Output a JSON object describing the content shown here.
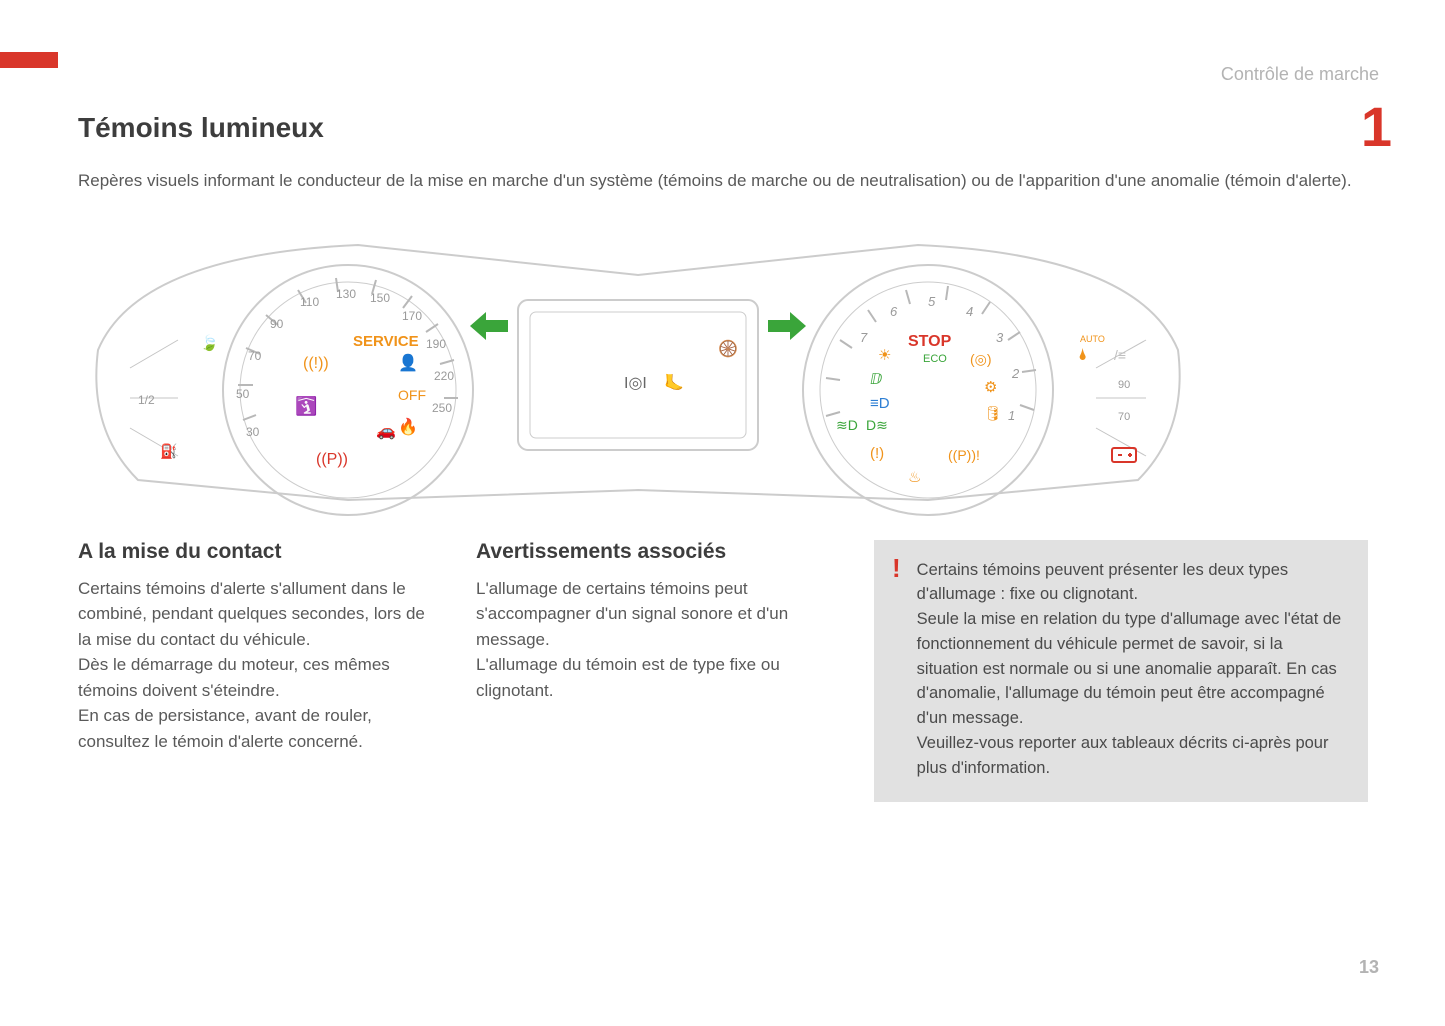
{
  "header": {
    "section_label": "Contrôle de marche",
    "chapter_number": "1",
    "page_number": "13",
    "accent_color": "#d9362a",
    "muted_text_color": "#b3b3b3"
  },
  "main": {
    "title": "Témoins lumineux",
    "intro": "Repères visuels informant le conducteur de la mise en marche d'un système (témoins de marche ou de neutralisation) ou de l'apparition d'une anomalie (témoin d'alerte)."
  },
  "dashboard": {
    "type": "diagram",
    "outline_color": "#cccccc",
    "left_gauge": {
      "label_1_2": "1/2",
      "tick_values": [
        "30",
        "50",
        "70",
        "90",
        "110",
        "130",
        "150",
        "170",
        "190",
        "220",
        "250"
      ],
      "service_text": "SERVICE",
      "service_color": "#f0931a",
      "icons": [
        {
          "name": "eco-icon",
          "color": "#5aa63a"
        },
        {
          "name": "steering-warn-icon",
          "color": "#f0931a"
        },
        {
          "name": "seatbelt-icon",
          "color": "#d9362a"
        },
        {
          "name": "parking-brake-icon",
          "color": "#d9362a"
        },
        {
          "name": "airbag-icon",
          "color": "#f0931a"
        },
        {
          "name": "esp-off-icon",
          "color": "#f0931a"
        },
        {
          "name": "engine-temp-icon",
          "color": "#f0931a"
        },
        {
          "name": "lane-assist-icon",
          "color": "#f0931a"
        }
      ]
    },
    "center_display": {
      "turn_left_color": "#3aa53a",
      "turn_right_color": "#3aa53a",
      "icons": [
        {
          "name": "steering-icon",
          "color": "#555555"
        },
        {
          "name": "headlight-range-icon",
          "color": "#555555"
        },
        {
          "name": "foot-brake-icon",
          "color": "#555555"
        }
      ]
    },
    "right_gauge": {
      "tick_values": [
        "1",
        "2",
        "3",
        "4",
        "5",
        "6",
        "7"
      ],
      "stop_text": "STOP",
      "stop_color": "#d9362a",
      "eco_text": "ECO",
      "eco_color": "#3aa53a",
      "icons_left": [
        {
          "name": "sun-icon",
          "color": "#f0931a"
        },
        {
          "name": "lowbeam-icon",
          "color": "#3aa53a"
        },
        {
          "name": "highbeam-icon",
          "color": "#2e7fd4"
        },
        {
          "name": "foglight-front-icon",
          "color": "#3aa53a"
        },
        {
          "name": "foglight-rear-icon",
          "color": "#3aa53a"
        },
        {
          "name": "tire-pressure-icon",
          "color": "#f0931a"
        }
      ],
      "icons_right": [
        {
          "name": "abs-icon",
          "color": "#f0931a"
        },
        {
          "name": "engine-icon",
          "color": "#f0931a"
        },
        {
          "name": "oil-icon",
          "color": "#f0931a"
        },
        {
          "name": "brake-warn-icon",
          "color": "#f0931a"
        },
        {
          "name": "coolant-icon",
          "color": "#f0931a"
        }
      ],
      "temp_values": [
        "70",
        "90"
      ],
      "auto_wiper_text": "AUTO",
      "wiper_color": "#f0931a",
      "battery_icon": {
        "name": "battery-icon",
        "color": "#d9362a"
      }
    }
  },
  "columns": {
    "col1": {
      "title": "A la mise du contact",
      "body": "Certains témoins d'alerte s'allument dans le combiné, pendant quelques secondes, lors de la mise du contact du véhicule.\nDès le démarrage du moteur, ces mêmes témoins doivent s'éteindre.\nEn cas de persistance, avant de rouler, consultez le témoin d'alerte concerné."
    },
    "col2": {
      "title": "Avertissements associés",
      "body": "L'allumage de certains témoins peut s'accompagner d'un signal sonore et d'un message.\nL'allumage du témoin est de type fixe ou clignotant."
    },
    "infobox": {
      "marker": "!",
      "body": "Certains témoins peuvent présenter les deux types d'allumage : fixe ou clignotant.\nSeule la mise en relation du type d'allumage avec l'état de fonctionnement du véhicule permet de savoir, si la situation est normale ou si une anomalie apparaît. En cas d'anomalie, l'allumage du témoin peut être accompagné d'un message.\nVeuillez-vous reporter aux tableaux décrits ci-après pour plus d'information.",
      "background": "#e1e1e1"
    }
  }
}
